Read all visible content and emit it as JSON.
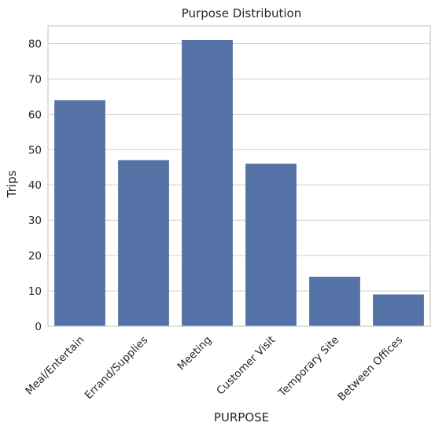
{
  "chart_data": {
    "type": "bar",
    "title": "Purpose Distribution",
    "xlabel": "PURPOSE",
    "ylabel": "Trips",
    "categories": [
      "Meal/Entertain",
      "Errand/Supplies",
      "Meeting",
      "Customer Visit",
      "Temporary Site",
      "Between Offices"
    ],
    "values": [
      64,
      47,
      81,
      46,
      14,
      9
    ],
    "ylim": [
      0,
      85
    ],
    "yticks": [
      0,
      10,
      20,
      30,
      40,
      50,
      60,
      70,
      80
    ],
    "grid": "horizontal",
    "bar_color": "#5572a6",
    "grid_color": "#cfcfcf",
    "spine_color": "#cccccc"
  }
}
